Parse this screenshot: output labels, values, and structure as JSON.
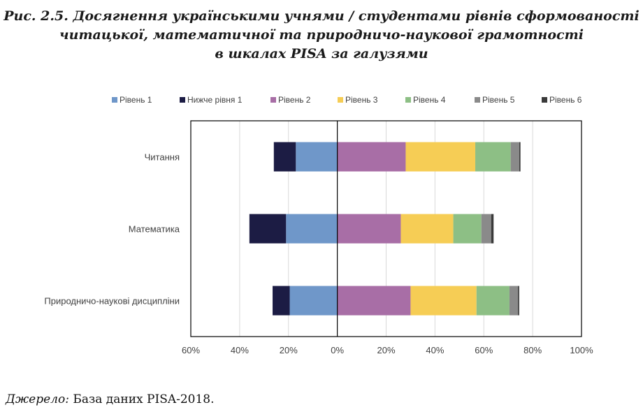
{
  "figure": {
    "title_lines": [
      "Рис. 2.5. Досягнення українськими учнями / студентами рівнів сформованості",
      "читацької, математичної та природничо-наукової грамотності",
      "в шкалах PISA за галузями"
    ],
    "source_label": "Джерело:",
    "source_text": " База даних PISA-2018."
  },
  "chart_data": {
    "type": "bar",
    "orientation": "horizontal-diverging",
    "title": "",
    "categories": [
      "Читання",
      "Математика",
      "Природничо-наукові дисципліни"
    ],
    "series": [
      {
        "name": "Рівень 1",
        "color": "#6f97c9",
        "side": "negative",
        "values": [
          17,
          21,
          19.5
        ]
      },
      {
        "name": "Нижче рівня 1",
        "color": "#1c1c44",
        "side": "negative",
        "values": [
          9,
          15,
          7
        ]
      },
      {
        "name": "Рівень 2",
        "color": "#a86ea6",
        "side": "positive",
        "values": [
          28,
          26,
          30
        ]
      },
      {
        "name": "Рівень 3",
        "color": "#f6cd55",
        "side": "positive",
        "values": [
          28.5,
          21.5,
          27
        ]
      },
      {
        "name": "Рівень 4",
        "color": "#8dbf85",
        "side": "positive",
        "values": [
          14.5,
          11.5,
          13.5
        ]
      },
      {
        "name": "Рівень 5",
        "color": "#8a8a8a",
        "side": "positive",
        "values": [
          3.5,
          4,
          3.5
        ]
      },
      {
        "name": "Рівень 6",
        "color": "#3a3a3a",
        "side": "positive",
        "values": [
          0.5,
          1,
          0.5
        ]
      }
    ],
    "xlim": [
      -60,
      100
    ],
    "xticks": [
      -60,
      -40,
      -20,
      0,
      20,
      40,
      60,
      80,
      100
    ],
    "xtick_labels": [
      "60%",
      "40%",
      "20%",
      "0%",
      "20%",
      "40%",
      "60%",
      "80%",
      "100%"
    ],
    "xlabel": "",
    "ylabel": "",
    "legend_position": "top",
    "grid": true
  }
}
